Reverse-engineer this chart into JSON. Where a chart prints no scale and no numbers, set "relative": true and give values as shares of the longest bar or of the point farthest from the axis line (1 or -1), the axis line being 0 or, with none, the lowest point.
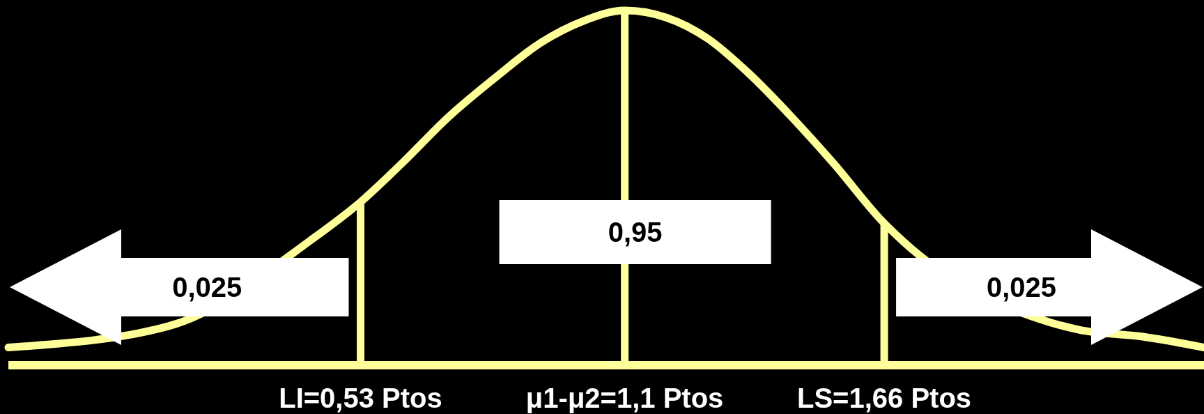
{
  "chart_data": {
    "type": "line",
    "relative": true,
    "xlim": [
      -0.23,
      2.35
    ],
    "xticks": [
      {
        "value": 0.53,
        "label": "LI=0,53 Ptos"
      },
      {
        "value": 1.1,
        "label": "μ1-μ2=1,1 Ptos"
      },
      {
        "value": 1.66,
        "label": "LS=1,66 Ptos"
      }
    ],
    "series": [
      {
        "color": "#ffff99",
        "x": [
          -0.23,
          -0.13,
          -0.05,
          0.05,
          0.14,
          0.42,
          0.53,
          0.62,
          0.72,
          0.82,
          0.92,
          1.01,
          1.1,
          1.19,
          1.28,
          1.37,
          1.46,
          1.55,
          1.66,
          1.7,
          2.02,
          2.08,
          2.22,
          2.35
        ],
        "values": [
          0.05,
          0.06,
          0.07,
          0.09,
          0.12,
          0.35,
          0.46,
          0.57,
          0.7,
          0.81,
          0.91,
          0.97,
          1,
          0.98,
          0.92,
          0.82,
          0.7,
          0.57,
          0.4,
          0.35,
          0.12,
          0.1,
          0.08,
          0.05
        ]
      }
    ],
    "ref_lines": [
      {
        "axis": "x",
        "value": 0.53,
        "color": "#ffff99"
      },
      {
        "axis": "x",
        "value": 1.1,
        "color": "#ffff99"
      },
      {
        "axis": "x",
        "value": 1.66,
        "color": "#ffff99"
      }
    ],
    "annotations": [
      "0,025",
      "0,95",
      "0,025"
    ]
  }
}
